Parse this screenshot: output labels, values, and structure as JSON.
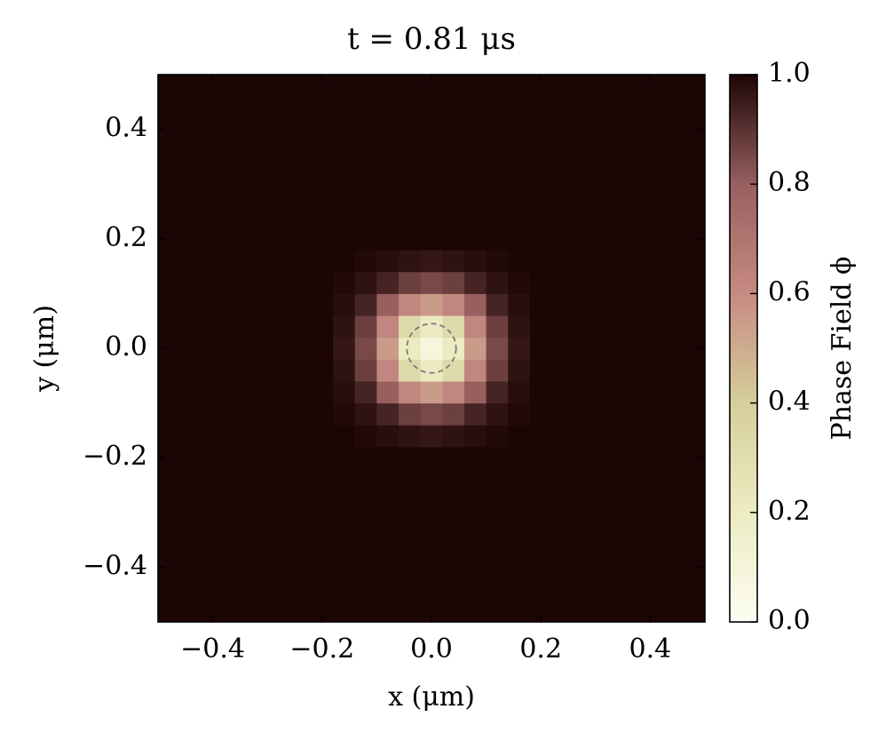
{
  "chart_data": {
    "type": "heatmap",
    "title": "t = 0.81 μs",
    "x_label": "x (μm)",
    "y_label": "y (μm)",
    "colorbar_label": "Phase Field ϕ",
    "xlim": [
      -0.5,
      0.5
    ],
    "ylim": [
      -0.5,
      0.5
    ],
    "xticks": [
      {
        "value": -0.4,
        "label": "−0.4"
      },
      {
        "value": -0.2,
        "label": "−0.2"
      },
      {
        "value": 0,
        "label": "0.0"
      },
      0.2,
      0.4
    ],
    "yticks": [
      {
        "value": -0.4,
        "label": "−0.4"
      },
      {
        "value": -0.2,
        "label": "−0.2"
      },
      {
        "value": 0,
        "label": "0.0"
      },
      0.2,
      0.4
    ],
    "xbins": [
      -0.5,
      -0.18,
      -0.14,
      -0.1,
      -0.06,
      -0.02,
      0.02,
      0.06,
      0.1,
      0.14,
      0.18,
      0.5
    ],
    "ybins": [
      -0.5,
      -0.18,
      -0.14,
      -0.1,
      -0.06,
      -0.02,
      0.02,
      0.06,
      0.1,
      0.14,
      0.18,
      0.5
    ],
    "z": [
      [
        1,
        1,
        1,
        1,
        1,
        1,
        1,
        1,
        1,
        1,
        1
      ],
      [
        1,
        1,
        0.99,
        0.98,
        0.97,
        0.96,
        0.97,
        0.98,
        0.99,
        1,
        1
      ],
      [
        1,
        0.99,
        0.97,
        0.93,
        0.87,
        0.85,
        0.87,
        0.93,
        0.97,
        0.99,
        1
      ],
      [
        1,
        0.98,
        0.93,
        0.8,
        0.62,
        0.55,
        0.62,
        0.8,
        0.93,
        0.98,
        1
      ],
      [
        1,
        0.97,
        0.87,
        0.62,
        0.32,
        0.2,
        0.32,
        0.62,
        0.87,
        0.97,
        1
      ],
      [
        1,
        0.96,
        0.85,
        0.55,
        0.2,
        0.08,
        0.2,
        0.55,
        0.85,
        0.96,
        1
      ],
      [
        1,
        0.97,
        0.87,
        0.62,
        0.32,
        0.2,
        0.32,
        0.62,
        0.87,
        0.97,
        1
      ],
      [
        1,
        0.98,
        0.93,
        0.8,
        0.62,
        0.55,
        0.62,
        0.8,
        0.93,
        0.98,
        1
      ],
      [
        1,
        0.99,
        0.97,
        0.93,
        0.87,
        0.85,
        0.87,
        0.93,
        0.97,
        0.99,
        1
      ],
      [
        1,
        1,
        0.99,
        0.98,
        0.97,
        0.96,
        0.97,
        0.98,
        0.99,
        1,
        1
      ],
      [
        1,
        1,
        1,
        1,
        1,
        1,
        1,
        1,
        1,
        1,
        1
      ]
    ],
    "clim": [
      0,
      1
    ],
    "cticks": [
      {
        "value": 0,
        "label": "0.0"
      },
      0.2,
      0.4,
      0.6,
      0.8,
      {
        "value": 1,
        "label": "1.0"
      }
    ],
    "colormap": [
      [
        0,
        "#fdfdf2"
      ],
      [
        0.2,
        "#ecebc2"
      ],
      [
        0.4,
        "#d6cf9b"
      ],
      [
        0.6,
        "#c68a82"
      ],
      [
        0.8,
        "#985f5f"
      ],
      [
        1,
        "#1c0505"
      ]
    ],
    "circle": {
      "x": 0,
      "y": 0,
      "r": 0.045,
      "color": "#7a7a7a"
    }
  }
}
